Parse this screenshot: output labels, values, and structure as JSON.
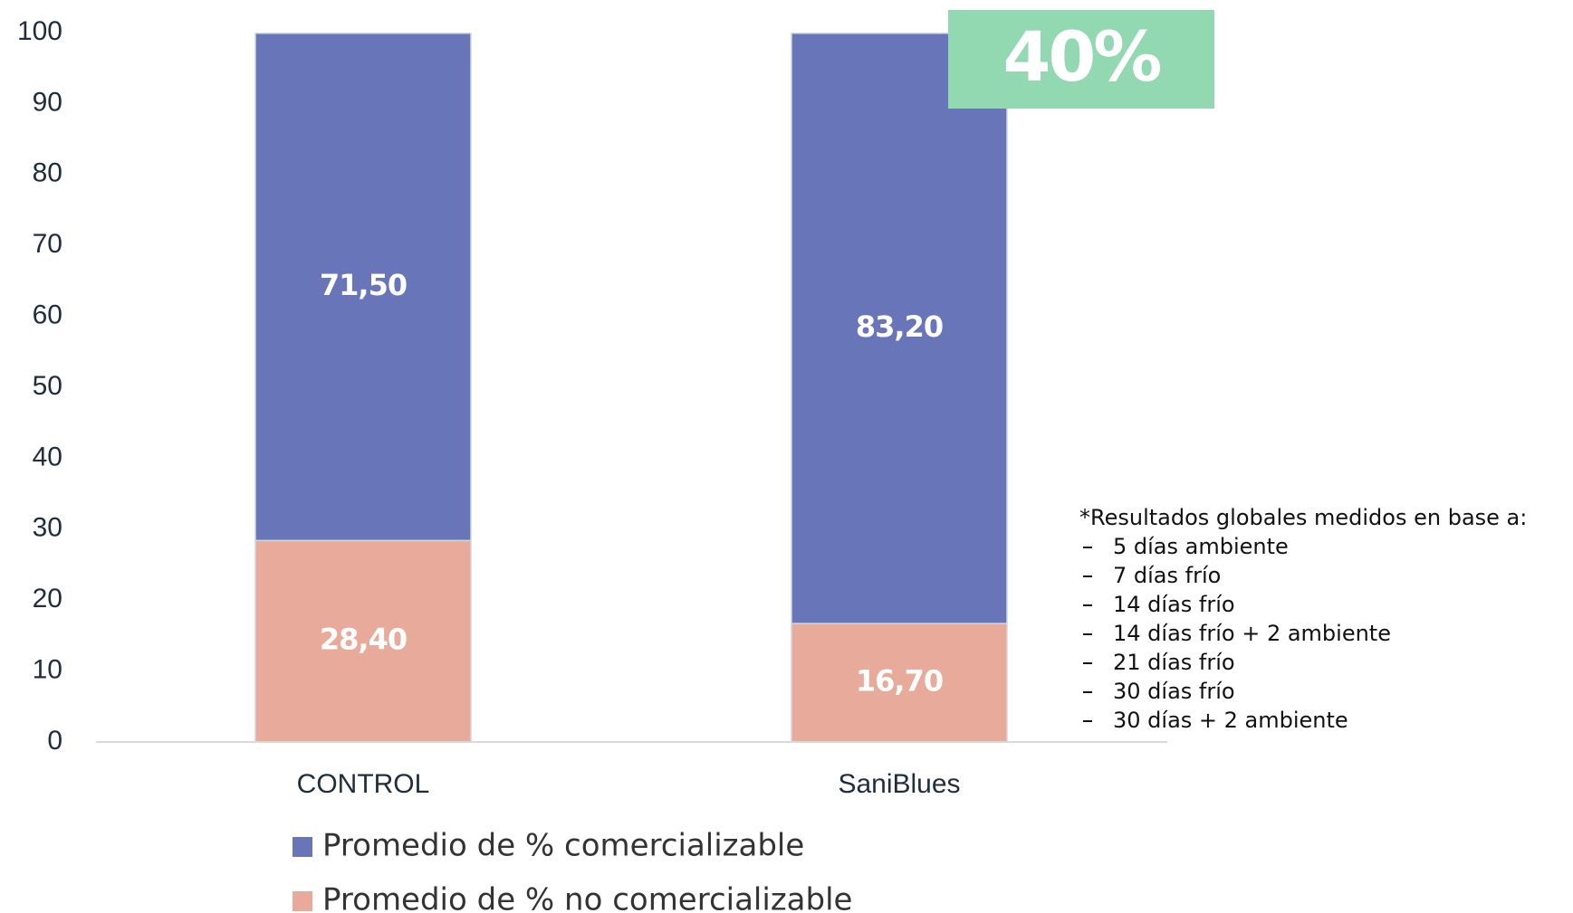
{
  "chart_data": {
    "type": "stacked_bar",
    "categories": [
      "CONTROL",
      "SaniBlues"
    ],
    "series": [
      {
        "name": "Promedio de % no comercializable",
        "color": "#e8aa9b",
        "values": [
          28.4,
          16.7
        ],
        "value_labels": [
          "28,40",
          "16,70"
        ]
      },
      {
        "name": "Promedio de % comercializable",
        "color": "#6875b8",
        "values": [
          71.5,
          83.2
        ],
        "value_labels": [
          "71,50",
          "83,20"
        ]
      }
    ],
    "ylim": [
      0,
      100
    ],
    "yticks": [
      0,
      10,
      20,
      30,
      40,
      50,
      60,
      70,
      80,
      90,
      100
    ],
    "annotation": {
      "text": "40%",
      "color": "#92d8b0"
    },
    "note": {
      "title": "*Resultados globales medidos en base a:",
      "items": [
        "5 días ambiente",
        "7 días frío",
        "14 días frío",
        "14 días frío + 2 ambiente",
        "21 días frío",
        "30 días frío",
        "30 días + 2 ambiente"
      ]
    }
  }
}
